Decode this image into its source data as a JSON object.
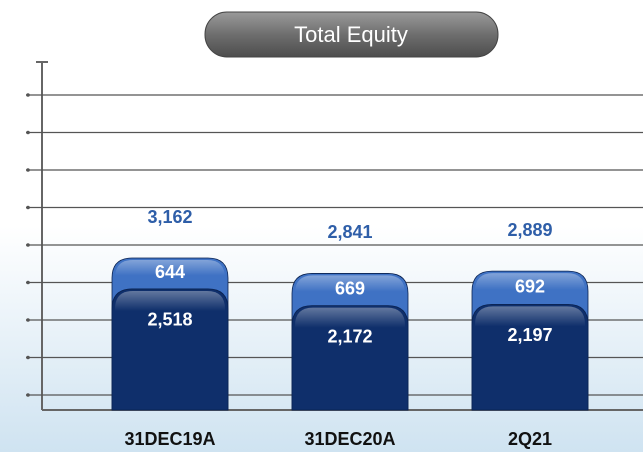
{
  "chart_data": {
    "type": "stacked_bar",
    "title": "Total Equity",
    "categories": [
      "31DEC19A",
      "31DEC20A",
      "2Q21"
    ],
    "series": [
      {
        "color": "#0f2f6b",
        "values": [
          2518,
          2172,
          2197
        ],
        "value_labels": [
          "2,518",
          "2,172",
          "2,197"
        ]
      },
      {
        "color": "#3f72c4",
        "values": [
          644,
          669,
          692
        ]
      }
    ],
    "totals": [
      3162,
      2841,
      2889
    ],
    "total_labels": [
      "3,162",
      "2,841",
      "2,889"
    ]
  }
}
